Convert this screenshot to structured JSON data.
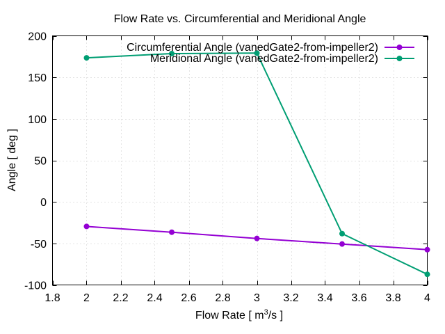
{
  "chart_data": {
    "type": "line",
    "title": "Flow Rate vs. Circumferential and Meridional Angle",
    "xlabel_prefix": "Flow Rate [ m",
    "xlabel_sup": "3",
    "xlabel_suffix": "/s ]",
    "ylabel": "Angle [ deg ]",
    "xlim": [
      1.8,
      4
    ],
    "ylim": [
      -100,
      200
    ],
    "xticks": [
      1.8,
      2,
      2.2,
      2.4,
      2.6,
      2.8,
      3,
      3.2,
      3.4,
      3.6,
      3.8,
      4
    ],
    "xtick_labels": [
      "1.8",
      "2",
      "2.2",
      "2.4",
      "2.6",
      "2.8",
      "3",
      "3.2",
      "3.4",
      "3.6",
      "3.8",
      "4"
    ],
    "yticks": [
      -100,
      -50,
      0,
      50,
      100,
      150,
      200
    ],
    "ytick_labels": [
      "-100",
      "-50",
      "0",
      "50",
      "100",
      "150",
      "200"
    ],
    "grid": true,
    "legend_position": "top-right",
    "x": [
      2,
      2.5,
      3,
      3.5,
      4
    ],
    "series": [
      {
        "name": "Circumferential Angle (vanedGate2-from-impeller2)",
        "color": "#9400d3",
        "values": [
          -29.5,
          -36.5,
          -44.0,
          -50.7,
          -57.5
        ]
      },
      {
        "name": "Meridional Angle (vanedGate2-from-impeller2)",
        "color": "#009e73",
        "values": [
          173.5,
          178.6,
          179.2,
          -38.2,
          -87.2
        ]
      }
    ]
  }
}
